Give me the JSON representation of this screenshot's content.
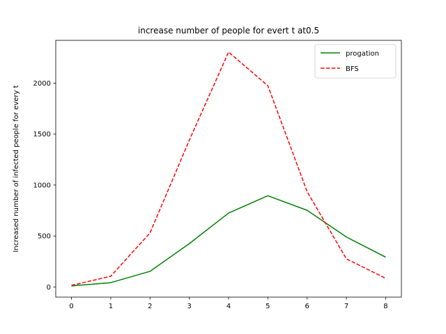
{
  "chart_data": {
    "type": "line",
    "title": "increase number of people for evert t  at0.5",
    "xlabel": "",
    "ylabel": "Increased number of infected people for every t",
    "x": [
      0,
      1,
      2,
      3,
      4,
      5,
      6,
      7,
      8
    ],
    "xlim": [
      -0.4,
      8.4
    ],
    "ylim": [
      -100,
      2420
    ],
    "xticks": [
      0,
      1,
      2,
      3,
      4,
      5,
      6,
      7,
      8
    ],
    "yticks": [
      0,
      500,
      1000,
      1500,
      2000
    ],
    "grid": false,
    "legend_position": "top-right",
    "series": [
      {
        "name": "progation",
        "color": "#008000",
        "style": "solid",
        "values": [
          10,
          42,
          153,
          425,
          725,
          895,
          752,
          490,
          292
        ]
      },
      {
        "name": "BFS",
        "color": "#ff0000",
        "style": "dashed",
        "values": [
          15,
          105,
          530,
          1440,
          2305,
          1975,
          935,
          275,
          85
        ]
      }
    ]
  }
}
